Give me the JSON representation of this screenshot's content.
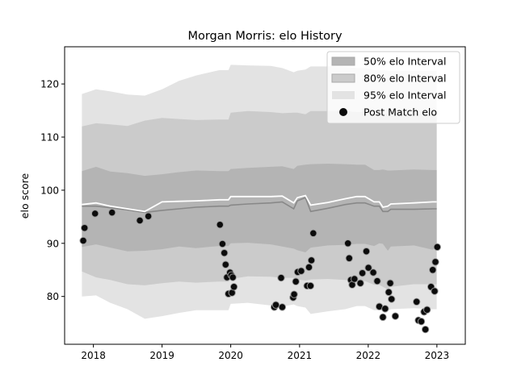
{
  "chart_data": {
    "type": "line",
    "title": "Morgan Morris: elo History",
    "xlabel": "",
    "ylabel": "elo score",
    "xlim": [
      "2017-08-01",
      "2023-06-01"
    ],
    "ylim": [
      71,
      127
    ],
    "x_ticks": [
      "2018",
      "2019",
      "2020",
      "2021",
      "2022",
      "2023"
    ],
    "y_ticks": [
      80,
      90,
      100,
      110,
      120
    ],
    "legend_position": "top-right",
    "legend": [
      "50% elo Interval",
      "80% elo Interval",
      "95% elo Interval",
      "Post Match elo"
    ],
    "colors": {
      "band50": "#b4b4b4",
      "band80": "#cbcbcb",
      "band95": "#e3e3e3",
      "median_line": "#888888",
      "mean_line": "#ffffff",
      "points": "#0c0c0c"
    },
    "intervals": {
      "x": [
        "2017-11-01",
        "2018-01-15",
        "2018-04-01",
        "2018-07-01",
        "2018-10-01",
        "2019-01-01",
        "2019-04-01",
        "2019-07-01",
        "2019-11-01",
        "2019-12-20",
        "2020-01-01",
        "2020-04-01",
        "2020-08-01",
        "2020-10-01",
        "2020-12-01",
        "2020-12-20",
        "2021-02-01",
        "2021-03-01",
        "2021-06-01",
        "2021-09-01",
        "2021-11-01",
        "2021-12-15",
        "2022-02-01",
        "2022-03-01",
        "2022-03-20",
        "2022-04-15",
        "2022-05-01",
        "2022-09-01",
        "2022-12-10",
        "2022-12-31"
      ],
      "median": [
        97.0,
        97.0,
        96.7,
        96.3,
        95.8,
        96.2,
        96.5,
        96.8,
        97.0,
        97.0,
        97.2,
        97.4,
        97.6,
        97.8,
        96.5,
        98.0,
        98.6,
        96.0,
        96.6,
        97.3,
        97.6,
        97.6,
        97.0,
        97.0,
        96.0,
        96.0,
        96.4,
        96.4,
        96.5,
        96.5
      ],
      "mean": [
        97.3,
        97.6,
        97.0,
        96.5,
        96.0,
        97.8,
        97.9,
        98.0,
        98.2,
        98.2,
        98.8,
        98.8,
        98.8,
        98.9,
        97.6,
        98.6,
        99.0,
        97.2,
        97.7,
        98.4,
        98.8,
        98.8,
        97.8,
        97.8,
        96.8,
        97.0,
        97.4,
        97.6,
        97.8,
        97.8
      ],
      "p50_low": [
        89.3,
        89.8,
        89.2,
        88.5,
        88.6,
        88.9,
        89.4,
        89.1,
        89.5,
        89.5,
        90.0,
        90.1,
        89.8,
        89.4,
        89.0,
        88.7,
        88.3,
        89.2,
        89.6,
        89.7,
        89.9,
        89.9,
        89.5,
        90.0,
        89.9,
        88.6,
        89.4,
        89.6,
        88.8,
        89.3
      ],
      "p50_high": [
        103.6,
        104.4,
        103.5,
        103.2,
        102.7,
        103.0,
        103.4,
        103.7,
        103.6,
        103.6,
        104.0,
        104.2,
        104.4,
        104.5,
        104.0,
        104.6,
        104.8,
        104.9,
        105.0,
        104.9,
        104.8,
        104.8,
        103.8,
        103.8,
        103.9,
        103.7,
        103.7,
        103.9,
        103.8,
        103.8
      ],
      "p80_low": [
        84.7,
        83.6,
        83.1,
        82.3,
        82.1,
        82.5,
        82.8,
        82.6,
        82.8,
        82.8,
        83.3,
        83.8,
        83.7,
        83.5,
        83.5,
        83.2,
        83.0,
        83.2,
        83.3,
        83.1,
        82.9,
        82.9,
        82.2,
        82.2,
        81.8,
        81.3,
        81.8,
        82.3,
        82.3,
        82.3
      ],
      "p80_high": [
        112.0,
        112.6,
        112.4,
        112.1,
        113.1,
        113.6,
        113.4,
        113.2,
        113.3,
        113.3,
        114.6,
        114.9,
        114.7,
        114.5,
        114.6,
        114.6,
        114.3,
        114.9,
        114.9,
        114.9,
        114.7,
        114.7,
        114.5,
        114.5,
        114.5,
        114.3,
        114.3,
        114.3,
        114.3,
        114.3
      ],
      "p95_low": [
        80.0,
        80.2,
        78.8,
        77.6,
        75.8,
        76.3,
        76.9,
        77.4,
        77.4,
        77.4,
        78.6,
        78.8,
        78.3,
        78.1,
        78.5,
        78.2,
        77.9,
        76.7,
        77.2,
        77.6,
        78.2,
        78.2,
        77.4,
        77.4,
        77.3,
        77.3,
        77.6,
        77.8,
        77.6,
        77.6
      ],
      "p95_high": [
        118.1,
        119.0,
        118.6,
        118.0,
        117.8,
        119.0,
        120.6,
        121.6,
        122.6,
        122.6,
        123.6,
        123.5,
        123.4,
        123.0,
        122.2,
        122.5,
        122.7,
        123.3,
        123.3,
        123.2,
        123.0,
        123.0,
        122.6,
        122.6,
        122.6,
        122.5,
        122.5,
        122.5,
        122.5,
        122.5
      ]
    },
    "post_match_elo": [
      {
        "x": "2017-11-08",
        "y": 90.5
      },
      {
        "x": "2017-11-15",
        "y": 92.9
      },
      {
        "x": "2018-01-10",
        "y": 95.6
      },
      {
        "x": "2018-04-10",
        "y": 95.8
      },
      {
        "x": "2018-09-05",
        "y": 94.3
      },
      {
        "x": "2018-10-20",
        "y": 95.1
      },
      {
        "x": "2019-11-05",
        "y": 93.5
      },
      {
        "x": "2019-11-18",
        "y": 89.9
      },
      {
        "x": "2019-11-28",
        "y": 88.2
      },
      {
        "x": "2019-12-05",
        "y": 86.0
      },
      {
        "x": "2019-12-12",
        "y": 83.6
      },
      {
        "x": "2019-12-20",
        "y": 80.5
      },
      {
        "x": "2019-12-28",
        "y": 84.5
      },
      {
        "x": "2020-01-04",
        "y": 84.0
      },
      {
        "x": "2020-01-08",
        "y": 80.7
      },
      {
        "x": "2020-01-12",
        "y": 83.6
      },
      {
        "x": "2020-01-18",
        "y": 81.8
      },
      {
        "x": "2020-08-20",
        "y": 78.0
      },
      {
        "x": "2020-08-28",
        "y": 78.4
      },
      {
        "x": "2020-09-25",
        "y": 83.5
      },
      {
        "x": "2020-10-01",
        "y": 78.0
      },
      {
        "x": "2020-11-28",
        "y": 79.8
      },
      {
        "x": "2020-12-03",
        "y": 80.4
      },
      {
        "x": "2020-12-12",
        "y": 82.8
      },
      {
        "x": "2020-12-22",
        "y": 84.6
      },
      {
        "x": "2021-01-10",
        "y": 84.8
      },
      {
        "x": "2021-02-10",
        "y": 82.0
      },
      {
        "x": "2021-02-20",
        "y": 85.5
      },
      {
        "x": "2021-02-28",
        "y": 82.0
      },
      {
        "x": "2021-03-05",
        "y": 86.8
      },
      {
        "x": "2021-03-15",
        "y": 91.9
      },
      {
        "x": "2021-09-15",
        "y": 90.0
      },
      {
        "x": "2021-09-22",
        "y": 87.2
      },
      {
        "x": "2021-10-01",
        "y": 83.1
      },
      {
        "x": "2021-10-08",
        "y": 82.2
      },
      {
        "x": "2021-10-20",
        "y": 83.3
      },
      {
        "x": "2021-11-20",
        "y": 82.5
      },
      {
        "x": "2021-12-01",
        "y": 84.4
      },
      {
        "x": "2021-12-22",
        "y": 88.5
      },
      {
        "x": "2022-01-02",
        "y": 85.4
      },
      {
        "x": "2022-01-28",
        "y": 84.5
      },
      {
        "x": "2022-02-18",
        "y": 82.9
      },
      {
        "x": "2022-03-01",
        "y": 78.1
      },
      {
        "x": "2022-03-20",
        "y": 76.1
      },
      {
        "x": "2022-04-01",
        "y": 77.7
      },
      {
        "x": "2022-04-20",
        "y": 80.8
      },
      {
        "x": "2022-04-28",
        "y": 82.5
      },
      {
        "x": "2022-05-05",
        "y": 79.5
      },
      {
        "x": "2022-05-25",
        "y": 76.3
      },
      {
        "x": "2022-09-15",
        "y": 79.0
      },
      {
        "x": "2022-09-25",
        "y": 75.5
      },
      {
        "x": "2022-10-10",
        "y": 75.3
      },
      {
        "x": "2022-10-25",
        "y": 77.1
      },
      {
        "x": "2022-11-01",
        "y": 73.8
      },
      {
        "x": "2022-11-10",
        "y": 77.5
      },
      {
        "x": "2022-12-01",
        "y": 81.8
      },
      {
        "x": "2022-12-10",
        "y": 85.0
      },
      {
        "x": "2022-12-20",
        "y": 81.0
      },
      {
        "x": "2022-12-24",
        "y": 86.5
      },
      {
        "x": "2023-01-03",
        "y": 89.3
      }
    ]
  }
}
